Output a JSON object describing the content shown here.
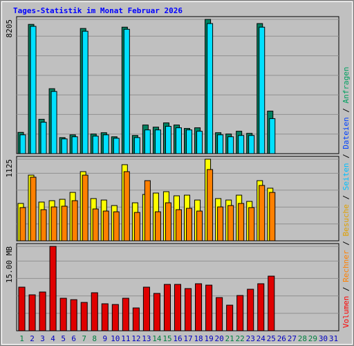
{
  "title": "Tages-Statistik im Monat Februar 2026",
  "legend": {
    "separator": " / ",
    "items": [
      {
        "name": "Volumen",
        "color": "#ff0000"
      },
      {
        "name": "Rechner",
        "color": "#ff8000"
      },
      {
        "name": "Besuche",
        "color": "#e0a000"
      },
      {
        "name": "Seiten",
        "color": "#00c0ff"
      },
      {
        "name": "Dateien",
        "color": "#0040ff"
      },
      {
        "name": "Anfragen",
        "color": "#00a060"
      }
    ]
  },
  "chart_data": [
    {
      "type": "bar",
      "ylim": [
        0,
        8205
      ],
      "yticks": [
        8205
      ],
      "series": [
        {
          "color": "#008060",
          "values": [
            1300,
            7900,
            2100,
            3970,
            980,
            1150,
            7650,
            1200,
            1280,
            1030,
            7730,
            1110,
            1750,
            1620,
            1880,
            1750,
            1540,
            1580,
            8205,
            1280,
            1200,
            1370,
            1240,
            7950,
            2600,
            null,
            null,
            null,
            null,
            null,
            null
          ]
        },
        {
          "color": "#00e0ff",
          "values": [
            1150,
            7780,
            1920,
            3800,
            900,
            1030,
            7480,
            1070,
            1150,
            940,
            7600,
            980,
            1450,
            1450,
            1670,
            1580,
            1450,
            1370,
            7950,
            1150,
            1030,
            1110,
            1110,
            7730,
            2140,
            null,
            null,
            null,
            null,
            null,
            null
          ]
        }
      ]
    },
    {
      "type": "bar",
      "ylim": [
        0,
        1125
      ],
      "yticks": [
        1125
      ],
      "series": [
        {
          "color": "#ffff00",
          "values": [
            515,
            905,
            534,
            553,
            572,
            667,
            953,
            582,
            562,
            486,
            1049,
            524,
            639,
            658,
            677,
            620,
            629,
            562,
            1125,
            582,
            562,
            629,
            543,
            829,
            725,
            null,
            null,
            null,
            null,
            null,
            null
          ]
        },
        {
          "color": "#ff8000",
          "values": [
            458,
            877,
            429,
            467,
            477,
            553,
            905,
            439,
            410,
            400,
            953,
            391,
            829,
            400,
            524,
            429,
            448,
            410,
            982,
            467,
            486,
            515,
            458,
            763,
            667,
            null,
            null,
            null,
            null,
            null,
            null
          ]
        }
      ]
    },
    {
      "type": "bar",
      "ylim": [
        0,
        15
      ],
      "yticks": [
        {
          "value": 15,
          "label": "15.00 MB"
        }
      ],
      "categories": [
        "1",
        "2",
        "3",
        "4",
        "5",
        "6",
        "7",
        "8",
        "9",
        "10",
        "11",
        "12",
        "13",
        "14",
        "15",
        "16",
        "17",
        "18",
        "19",
        "20",
        "21",
        "22",
        "23",
        "24",
        "25",
        "26",
        "27",
        "28",
        "29",
        "30",
        "31"
      ],
      "category_colors": [
        "#008040",
        "#0000c0",
        "#0000c0",
        "#0000c0",
        "#0000c0",
        "#0000c0",
        "#008040",
        "#008040",
        "#0000c0",
        "#0000c0",
        "#0000c0",
        "#0000c0",
        "#0000c0",
        "#008040",
        "#008040",
        "#0000c0",
        "#0000c0",
        "#0000c0",
        "#0000c0",
        "#0000c0",
        "#008040",
        "#008040",
        "#0000c0",
        "#0000c0",
        "#0000c0",
        "#0000c0",
        "#0000c0",
        "#008040",
        "#008040",
        "#0000c0",
        "#0000c0"
      ],
      "series": [
        {
          "color": "#e00000",
          "values": [
            7.75,
            6.39,
            6.89,
            15,
            5.78,
            5.53,
            5.04,
            6.76,
            4.8,
            4.67,
            5.78,
            4.06,
            7.75,
            6.64,
            8.24,
            8.24,
            7.5,
            8.36,
            8.11,
            5.9,
            4.55,
            6.27,
            7.38,
            8.36,
            9.71,
            null,
            null,
            null,
            null,
            null,
            null
          ]
        }
      ]
    }
  ]
}
